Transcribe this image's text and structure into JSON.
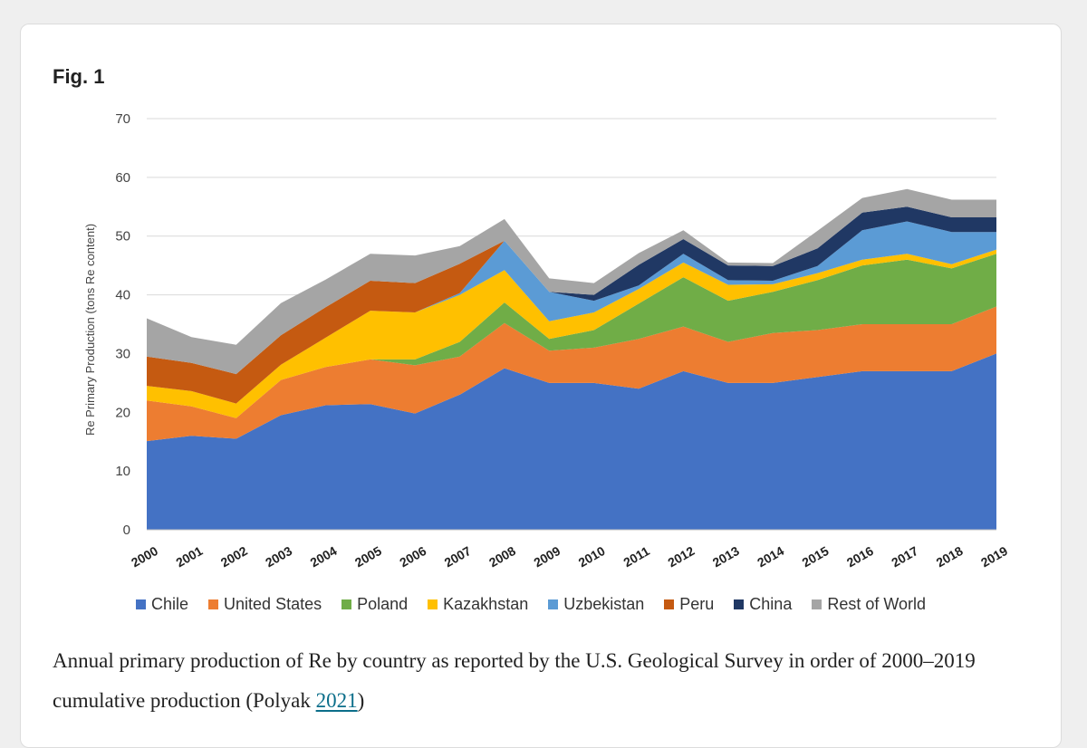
{
  "figure": {
    "label": "Fig. 1",
    "caption_main": "Annual primary production of Re by country as reported by the U.S. Geological Survey in order of 2000–2019 cumulative production (Polyak ",
    "caption_link": "2021",
    "caption_end": ")"
  },
  "chart_data": {
    "type": "area",
    "stacked": true,
    "ylabel": "Re Primary Production (tons Re content)",
    "xlabel": "",
    "ylim": [
      0,
      70
    ],
    "yticks": [
      0,
      10,
      20,
      30,
      40,
      50,
      60,
      70
    ],
    "grid": true,
    "legend_position": "bottom",
    "categories": [
      "2000",
      "2001",
      "2002",
      "2003",
      "2004",
      "2005",
      "2006",
      "2007",
      "2008",
      "2009",
      "2010",
      "2011",
      "2012",
      "2013",
      "2014",
      "2015",
      "2016",
      "2017",
      "2018",
      "2019"
    ],
    "series": [
      {
        "name": "Chile",
        "color": "#4472c4",
        "values": [
          15.1,
          16.0,
          15.5,
          19.5,
          21.2,
          21.4,
          19.8,
          23.0,
          27.5,
          25.0,
          25.0,
          24.0,
          27.0,
          25.0,
          25.0,
          26.0,
          27.0,
          27.0,
          27.0,
          30.0
        ]
      },
      {
        "name": "United States",
        "color": "#ed7d31",
        "values": [
          6.9,
          5.0,
          3.5,
          6.0,
          6.5,
          7.6,
          8.2,
          6.5,
          7.7,
          5.5,
          6.0,
          8.5,
          7.6,
          7.0,
          8.5,
          8.0,
          8.0,
          8.0,
          8.0,
          8.0
        ]
      },
      {
        "name": "Poland",
        "color": "#70ad47",
        "values": [
          0,
          0,
          0,
          0,
          0,
          0,
          1.0,
          2.5,
          3.5,
          2.0,
          3.0,
          6.0,
          8.4,
          7.0,
          7.0,
          8.5,
          10.0,
          11.0,
          9.5,
          9.0
        ]
      },
      {
        "name": "Kazakhstan",
        "color": "#ffc000",
        "values": [
          2.5,
          2.6,
          2.5,
          2.6,
          5.0,
          8.3,
          8.0,
          8.0,
          5.5,
          3.0,
          3.0,
          2.5,
          2.5,
          2.7,
          1.3,
          1.2,
          1.0,
          1.0,
          0.7,
          0.7
        ]
      },
      {
        "name": "Uzbekistan",
        "color": "#5b9bd5",
        "values": [
          0,
          0,
          0,
          0,
          0,
          0,
          0,
          0.3,
          5.0,
          5.0,
          2.0,
          0.6,
          1.5,
          0.8,
          0.6,
          1.2,
          5.0,
          5.5,
          5.5,
          3.0
        ]
      },
      {
        "name": "Peru",
        "color": "#c55a11",
        "values": [
          5.0,
          4.8,
          5.0,
          5.0,
          5.2,
          5.1,
          5.0,
          5.0,
          0,
          0,
          0,
          0,
          0,
          0,
          0,
          0,
          0,
          0,
          0,
          0
        ]
      },
      {
        "name": "China",
        "color": "#203864",
        "values": [
          0,
          0,
          0,
          0,
          0,
          0,
          0,
          0,
          0,
          0,
          1.0,
          3.5,
          2.5,
          2.5,
          2.5,
          3.0,
          3.0,
          2.5,
          2.5,
          2.5
        ]
      },
      {
        "name": "Rest of World",
        "color": "#a5a5a5",
        "values": [
          6.5,
          4.4,
          5.0,
          5.5,
          4.7,
          4.6,
          4.7,
          3.0,
          3.7,
          2.3,
          2.0,
          2.0,
          1.5,
          0.5,
          0.5,
          3.0,
          2.5,
          3.0,
          3.0,
          3.0
        ]
      }
    ]
  }
}
